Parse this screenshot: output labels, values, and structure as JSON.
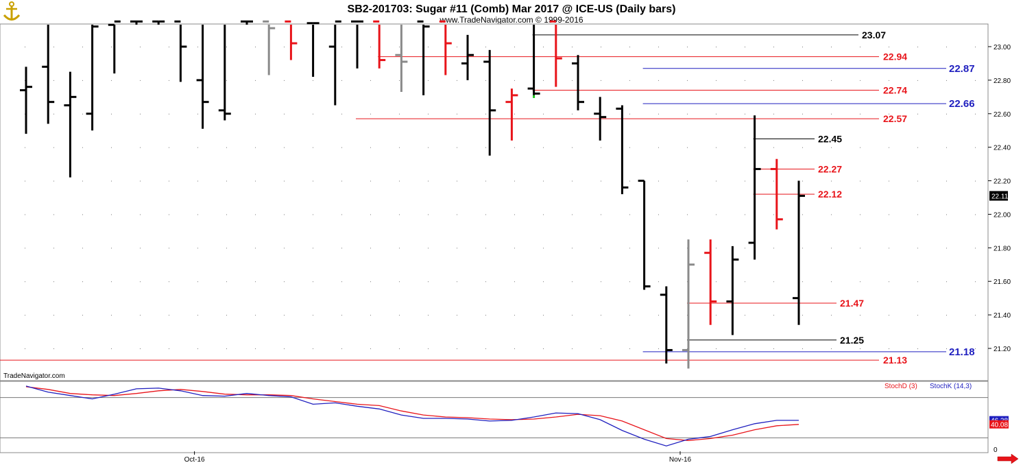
{
  "header": {
    "title": "SB2-201703:  Sugar #11 (Comb) Mar 2017 @ ICE-US  (Daily bars)",
    "subtitle": "www.TradeNavigator.com © 1999-2016"
  },
  "watermark": "TradeNavigator.com",
  "colors": {
    "black": "#000000",
    "red": "#e8141a",
    "gray": "#8a8a8a",
    "blue": "#1f1fbf",
    "green": "#19c419"
  },
  "icons": {
    "logo": "anchor-logo-icon",
    "next": "right-arrow-icon"
  },
  "chart_data": {
    "type": "ohlc",
    "ylim": [
      21.0,
      23.15
    ],
    "y_ticks": [
      "23.00",
      "22.80",
      "22.60",
      "22.40",
      "22.20",
      "22.00",
      "21.80",
      "21.60",
      "21.40",
      "21.20"
    ],
    "x_labels": [
      {
        "label": "Oct-16",
        "bar": 8
      },
      {
        "label": "Nov-16",
        "bar": 30
      }
    ],
    "last_price": "22.11",
    "bars": [
      {
        "o": 22.74,
        "h": 22.88,
        "l": 22.48,
        "c": 22.76,
        "color": "black"
      },
      {
        "o": 22.88,
        "h": 23.14,
        "l": 22.54,
        "c": 22.67,
        "color": "black"
      },
      {
        "o": 22.65,
        "h": 22.85,
        "l": 22.22,
        "c": 22.7,
        "color": "black"
      },
      {
        "o": 22.6,
        "h": 23.15,
        "l": 22.5,
        "c": 23.12,
        "color": "black"
      },
      {
        "o": 23.13,
        "h": 23.15,
        "l": 22.84,
        "c": 23.15,
        "color": "black"
      },
      {
        "o": 23.15,
        "h": 23.15,
        "l": 23.15,
        "c": 23.15,
        "color": "black"
      },
      {
        "o": 23.15,
        "h": 23.15,
        "l": 23.15,
        "c": 23.15,
        "color": "black"
      },
      {
        "o": 23.15,
        "h": 23.15,
        "l": 22.79,
        "c": 23.0,
        "color": "black"
      },
      {
        "o": 22.8,
        "h": 23.15,
        "l": 22.51,
        "c": 22.67,
        "color": "black"
      },
      {
        "o": 22.62,
        "h": 23.15,
        "l": 22.56,
        "c": 22.6,
        "color": "black"
      },
      {
        "o": 23.15,
        "h": 23.15,
        "l": 23.15,
        "c": 23.15,
        "color": "black"
      },
      {
        "o": 23.15,
        "h": 23.15,
        "l": 22.83,
        "c": 23.11,
        "color": "gray"
      },
      {
        "o": 23.15,
        "h": 23.15,
        "l": 22.92,
        "c": 23.02,
        "color": "red"
      },
      {
        "o": 23.14,
        "h": 23.14,
        "l": 22.82,
        "c": 23.14,
        "color": "black"
      },
      {
        "o": 23.0,
        "h": 23.15,
        "l": 22.65,
        "c": 23.15,
        "color": "black"
      },
      {
        "o": 23.15,
        "h": 23.15,
        "l": 22.87,
        "c": 23.15,
        "color": "black"
      },
      {
        "o": 23.15,
        "h": 23.15,
        "l": 22.87,
        "c": 22.92,
        "color": "red"
      },
      {
        "o": 22.95,
        "h": 23.15,
        "l": 22.73,
        "c": 22.91,
        "color": "gray"
      },
      {
        "o": 23.15,
        "h": 23.15,
        "l": 22.71,
        "c": 23.12,
        "color": "black"
      },
      {
        "o": 23.15,
        "h": 23.15,
        "l": 22.83,
        "c": 23.02,
        "color": "red"
      },
      {
        "o": 22.9,
        "h": 23.07,
        "l": 22.8,
        "c": 22.95,
        "color": "black"
      },
      {
        "o": 22.91,
        "h": 22.98,
        "l": 22.35,
        "c": 22.62,
        "color": "black"
      },
      {
        "o": 22.67,
        "h": 22.75,
        "l": 22.44,
        "c": 22.71,
        "color": "red"
      },
      {
        "o": 22.75,
        "h": 23.15,
        "l": 22.71,
        "c": 22.72,
        "color": "black",
        "low_mark": "green"
      },
      {
        "o": 23.15,
        "h": 23.15,
        "l": 22.76,
        "c": 22.93,
        "color": "red"
      },
      {
        "o": 22.9,
        "h": 22.95,
        "l": 22.62,
        "c": 22.67,
        "color": "black"
      },
      {
        "o": 22.6,
        "h": 22.7,
        "l": 22.44,
        "c": 22.58,
        "color": "black"
      },
      {
        "o": 22.63,
        "h": 22.65,
        "l": 22.12,
        "c": 22.16,
        "color": "black"
      },
      {
        "o": 22.2,
        "h": 22.2,
        "l": 21.55,
        "c": 21.57,
        "color": "black"
      },
      {
        "o": 21.52,
        "h": 21.57,
        "l": 21.11,
        "c": 21.19,
        "color": "black"
      },
      {
        "o": 21.19,
        "h": 21.85,
        "l": 21.08,
        "c": 21.7,
        "color": "gray"
      },
      {
        "o": 21.77,
        "h": 21.85,
        "l": 21.34,
        "c": 21.48,
        "color": "red"
      },
      {
        "o": 21.48,
        "h": 21.81,
        "l": 21.28,
        "c": 21.73,
        "color": "black"
      },
      {
        "o": 21.83,
        "h": 22.59,
        "l": 21.73,
        "c": 22.27,
        "color": "black"
      },
      {
        "o": 22.27,
        "h": 22.33,
        "l": 21.91,
        "c": 21.97,
        "color": "red"
      },
      {
        "o": 21.5,
        "h": 22.2,
        "l": 21.34,
        "c": 22.11,
        "color": "black"
      }
    ],
    "levels": [
      {
        "label": "23.07",
        "value": 23.07,
        "color": "black",
        "from_bar": 23
      },
      {
        "label": "22.94",
        "value": 22.94,
        "color": "red",
        "from_bar": 16
      },
      {
        "label": "22.87",
        "value": 22.87,
        "color": "blue",
        "from_bar": 28
      },
      {
        "label": "22.74",
        "value": 22.74,
        "color": "red",
        "from_bar": 23
      },
      {
        "label": "22.66",
        "value": 22.66,
        "color": "blue",
        "from_bar": 28
      },
      {
        "label": "22.57",
        "value": 22.57,
        "color": "red",
        "from_bar": 15
      },
      {
        "label": "22.45",
        "value": 22.45,
        "color": "black",
        "from_bar": 33
      },
      {
        "label": "22.27",
        "value": 22.27,
        "color": "red",
        "from_bar": 33
      },
      {
        "label": "22.12",
        "value": 22.12,
        "color": "red",
        "from_bar": 33
      },
      {
        "label": "21.47",
        "value": 21.47,
        "color": "red",
        "from_bar": 30
      },
      {
        "label": "21.25",
        "value": 21.25,
        "color": "black",
        "from_bar": 30
      },
      {
        "label": "21.18",
        "value": 21.18,
        "color": "blue",
        "from_bar": 28
      },
      {
        "label": "21.13",
        "value": 21.13,
        "color": "red",
        "from_bar": -1
      }
    ],
    "stochastic": {
      "ylim": [
        0,
        100
      ],
      "y_ticks": [
        "0"
      ],
      "guides": [
        80,
        20
      ],
      "legend": [
        {
          "name": "StochD (3)",
          "color": "red"
        },
        {
          "name": "StochK (14,3)",
          "color": "blue"
        }
      ],
      "last_values": {
        "k": "46.28",
        "d": "40.08"
      },
      "k": [
        97,
        88,
        83,
        78,
        85,
        93,
        94,
        90,
        83,
        82,
        86,
        83,
        81,
        70,
        72,
        67,
        63,
        54,
        49,
        49,
        48,
        45,
        46,
        51,
        57,
        56,
        47,
        31,
        18,
        8,
        18,
        22,
        32,
        41,
        46,
        46
      ],
      "d": [
        96,
        92,
        86,
        84,
        83,
        86,
        90,
        92,
        89,
        85,
        84,
        84,
        83,
        78,
        74,
        70,
        68,
        60,
        54,
        51,
        50,
        48,
        47,
        48,
        51,
        55,
        53,
        45,
        32,
        19,
        16,
        19,
        24,
        32,
        38,
        40
      ]
    }
  }
}
